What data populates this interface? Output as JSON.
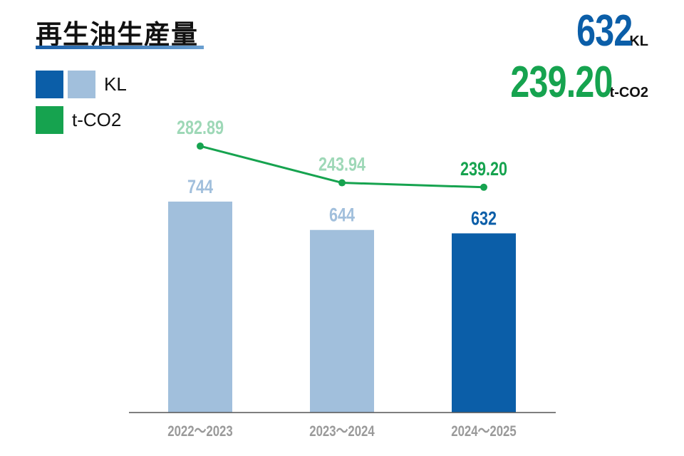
{
  "title": "再生油生産量",
  "legend": {
    "kl_label": "KL",
    "co2_label": "t-CO2"
  },
  "summary": {
    "kl_value": "632",
    "kl_unit": "KL",
    "co2_value": "239.20",
    "co2_unit": "t-CO2"
  },
  "colors": {
    "bar_current": "#0b5ea8",
    "bar_past": "#a1bfdc",
    "line": "#16a34f",
    "line_label_past": "#9ed8b7",
    "axis_label": "#9a9a9a"
  },
  "chart_data": {
    "type": "bar+line",
    "categories": [
      "2022～2023",
      "2023～2024",
      "2024～2025"
    ],
    "series": [
      {
        "name": "KL",
        "type": "bar",
        "values": [
          744,
          644,
          632
        ],
        "labels": [
          "744",
          "644",
          "632"
        ]
      },
      {
        "name": "t-CO2",
        "type": "line",
        "values": [
          282.89,
          243.94,
          239.2
        ],
        "labels": [
          "282.89",
          "243.94",
          "239.20"
        ]
      }
    ],
    "ylim": [
      0,
      1455
    ],
    "y2lim": [
      0,
      438
    ],
    "grid": false,
    "legend_position": "top-left"
  }
}
